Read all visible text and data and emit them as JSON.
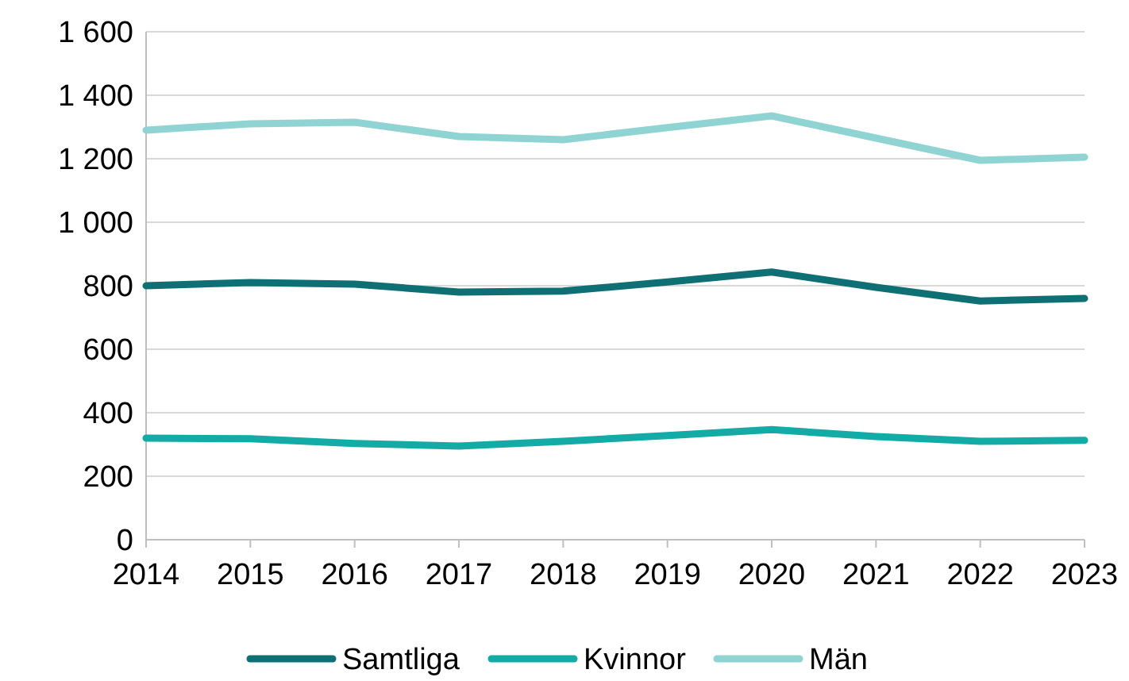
{
  "chart_data": {
    "type": "line",
    "x": [
      2014,
      2015,
      2016,
      2017,
      2018,
      2019,
      2020,
      2021,
      2022,
      2023
    ],
    "series": [
      {
        "name": "Samtliga",
        "color": "#0e7074",
        "values": [
          800,
          810,
          805,
          780,
          783,
          812,
          843,
          795,
          752,
          760
        ]
      },
      {
        "name": "Kvinnor",
        "color": "#12aba6",
        "values": [
          320,
          318,
          303,
          295,
          310,
          328,
          347,
          325,
          310,
          313
        ]
      },
      {
        "name": "Män",
        "color": "#8fd4d2",
        "values": [
          1290,
          1310,
          1315,
          1270,
          1260,
          1298,
          1335,
          1265,
          1195,
          1205
        ]
      }
    ],
    "xlim": [
      2014,
      2023
    ],
    "xticks": [
      2014,
      2015,
      2016,
      2017,
      2018,
      2019,
      2020,
      2021,
      2022,
      2023
    ],
    "ylim": [
      0,
      1600
    ],
    "yticks": [
      0,
      200,
      400,
      600,
      800,
      {
        "value": 1000,
        "label": "1 000"
      },
      {
        "value": 1200,
        "label": "1 200"
      },
      {
        "value": 1400,
        "label": "1 400"
      },
      {
        "value": 1600,
        "label": "1 600"
      }
    ],
    "grid": "y",
    "legend": "bottom",
    "marker": "none",
    "line_style": "solid"
  }
}
